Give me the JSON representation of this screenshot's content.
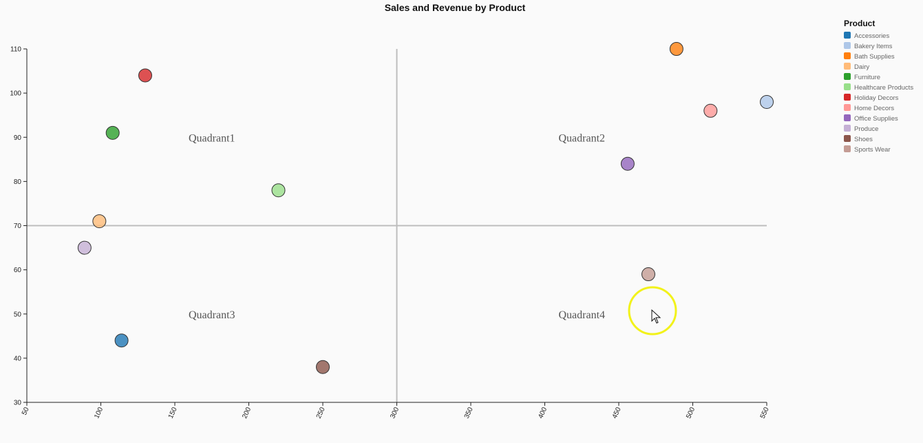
{
  "chart_data": {
    "type": "scatter",
    "title": "Sales and Revenue by Product",
    "xlabel": "",
    "ylabel": "",
    "xlim": [
      50,
      550
    ],
    "ylim": [
      30,
      110
    ],
    "xticks": [
      50,
      100,
      150,
      200,
      250,
      300,
      350,
      400,
      450,
      500,
      550
    ],
    "yticks": [
      30,
      40,
      50,
      60,
      70,
      80,
      90,
      100,
      110
    ],
    "x_divider": 300,
    "y_divider": 70,
    "quadrants": [
      {
        "label": "Quadrant1",
        "x": 175,
        "y": 90
      },
      {
        "label": "Quadrant2",
        "x": 425,
        "y": 90
      },
      {
        "label": "Quadrant3",
        "x": 175,
        "y": 50
      },
      {
        "label": "Quadrant4",
        "x": 425,
        "y": 50
      }
    ],
    "legend_title": "Product",
    "legend_position": "top-right",
    "points": [
      {
        "name": "Accessories",
        "x": 114,
        "y": 44,
        "color": "#1f77b4"
      },
      {
        "name": "Bakery Items",
        "x": 550,
        "y": 98,
        "color": "#aec7e8"
      },
      {
        "name": "Bath Supplies",
        "x": 489,
        "y": 110,
        "color": "#ff7f0e"
      },
      {
        "name": "Dairy",
        "x": 99,
        "y": 71,
        "color": "#ffbb78"
      },
      {
        "name": "Furniture",
        "x": 108,
        "y": 91,
        "color": "#2ca02c"
      },
      {
        "name": "Healthcare Products",
        "x": 220,
        "y": 78,
        "color": "#98df8a"
      },
      {
        "name": "Holiday Decors",
        "x": 130,
        "y": 104,
        "color": "#d62728"
      },
      {
        "name": "Home Decors",
        "x": 512,
        "y": 96,
        "color": "#ff9896"
      },
      {
        "name": "Office Supplies",
        "x": 456,
        "y": 84,
        "color": "#9467bd"
      },
      {
        "name": "Produce",
        "x": 89,
        "y": 65,
        "color": "#c5b0d5"
      },
      {
        "name": "Shoes",
        "x": 250,
        "y": 38,
        "color": "#8c564b"
      },
      {
        "name": "Sports Wear",
        "x": 470,
        "y": 59,
        "color": "#c49c94"
      }
    ]
  }
}
